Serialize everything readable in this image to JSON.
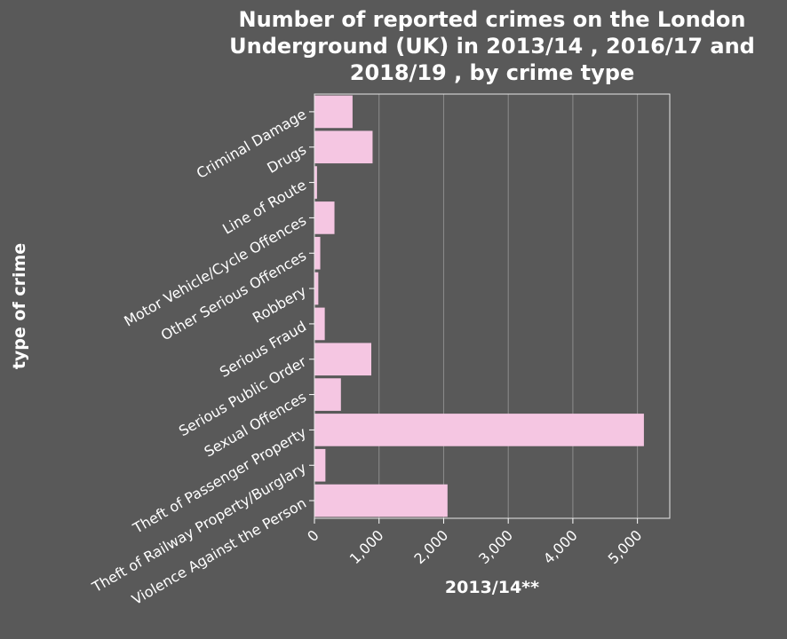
{
  "chart_data": {
    "type": "bar",
    "orientation": "horizontal",
    "title_lines": [
      "Number of reported crimes on the London",
      "Underground (UK) in 2013/14 , 2016/17 and",
      "2018/19 , by crime type"
    ],
    "xlabel": "2013/14**",
    "ylabel": "type of crime",
    "xlim": [
      0,
      5500
    ],
    "xticks": [
      0,
      1000,
      2000,
      3000,
      4000,
      5000
    ],
    "xtick_labels": [
      "0",
      "1,000",
      "2,000",
      "3,000",
      "4,000",
      "5,000"
    ],
    "grid": "vertical",
    "bar_color": "#f5c6e2",
    "background_color": "#595959",
    "categories": [
      "Criminal Damage",
      "Drugs",
      "Line of Route",
      "Motor Vehicle/Cycle Offences",
      "Other Serious Offences",
      "Robbery",
      "Serious Fraud",
      "Serious Public Order",
      "Sexual Offences",
      "Theft of Passenger Property",
      "Theft of Railway Property/Burglary",
      "Violence Against the Person"
    ],
    "values": [
      590,
      900,
      40,
      310,
      90,
      60,
      160,
      880,
      410,
      5100,
      170,
      2060
    ]
  }
}
